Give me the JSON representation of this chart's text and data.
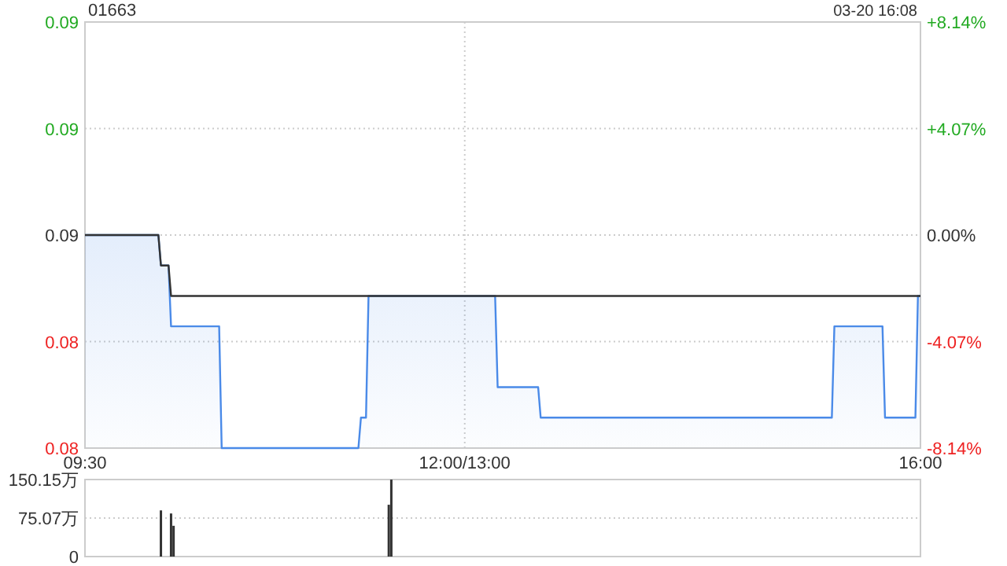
{
  "chart_data": [
    {
      "type": "area",
      "title": "01663",
      "annotations": [
        "03-20 16:08"
      ],
      "categories": [
        "09:30",
        null,
        null,
        null,
        null,
        null,
        null,
        null,
        null,
        null,
        null,
        null,
        null,
        null,
        null,
        null,
        null,
        null,
        null,
        null,
        null,
        null,
        null,
        null,
        null,
        null,
        null,
        null,
        null,
        null,
        null,
        null,
        null,
        null,
        null,
        null,
        null,
        null,
        null,
        null,
        null,
        null,
        null,
        null,
        null,
        null,
        null,
        null,
        null,
        null,
        null,
        null,
        null,
        null,
        null,
        null,
        null,
        null,
        null,
        null,
        null,
        null,
        null,
        null,
        null,
        null,
        null,
        null,
        null,
        null,
        null,
        null,
        null,
        null,
        null,
        null,
        null,
        null,
        null,
        null,
        null,
        null,
        null,
        null,
        null,
        null,
        null,
        null,
        null,
        null,
        null,
        null,
        null,
        null,
        null,
        null,
        null,
        null,
        null,
        null,
        null,
        null,
        null,
        null,
        null,
        null,
        null,
        null,
        null,
        null,
        null,
        null,
        null,
        null,
        null,
        null,
        null,
        null,
        null,
        null,
        null,
        null,
        null,
        null,
        null,
        null,
        null,
        null,
        null,
        null,
        null,
        null,
        null,
        null,
        null,
        null,
        null,
        null,
        null,
        null,
        null,
        null,
        null,
        null,
        null,
        null,
        null,
        null,
        null,
        null,
        "12:00/13:00",
        null,
        null,
        null,
        null,
        null,
        null,
        null,
        null,
        null,
        null,
        null,
        null,
        null,
        null,
        null,
        null,
        null,
        null,
        null,
        null,
        null,
        null,
        null,
        null,
        null,
        null,
        null,
        null,
        null,
        null,
        null,
        null,
        null,
        null,
        null,
        null,
        null,
        null,
        null,
        null,
        null,
        null,
        null,
        null,
        null,
        null,
        null,
        null,
        null,
        null,
        null,
        null,
        null,
        null,
        null,
        null,
        null,
        null,
        null,
        null,
        null,
        null,
        null,
        null,
        null,
        null,
        null,
        null,
        null,
        null,
        null,
        null,
        null,
        null,
        null,
        null,
        null,
        null,
        null,
        null,
        null,
        null,
        null,
        null,
        null,
        null,
        null,
        null,
        null,
        null,
        null,
        null,
        null,
        null,
        null,
        null,
        null,
        null,
        null,
        null,
        null,
        null,
        null,
        null,
        null,
        null,
        null,
        null,
        null,
        null,
        null,
        null,
        null,
        null,
        null,
        null,
        null,
        null,
        null,
        null,
        null,
        null,
        null,
        null,
        null,
        null,
        null,
        null,
        null,
        null,
        null,
        null,
        null,
        null,
        null,
        null,
        null,
        null,
        null,
        null,
        null,
        null,
        null,
        null,
        null,
        null,
        null,
        null,
        null,
        null,
        null,
        null,
        null,
        null,
        null,
        null,
        null,
        null,
        null,
        null,
        null,
        null,
        null,
        null,
        null,
        null,
        null,
        null,
        null,
        null,
        null,
        null,
        null,
        null,
        null,
        null,
        null,
        null,
        null,
        "16:00"
      ],
      "ylim": [
        0.079,
        0.093
      ],
      "yticks": [
        {
          "value": 0.093,
          "label": "0.09"
        },
        {
          "value": 0.0895,
          "label": "0.09"
        },
        {
          "value": 0.086,
          "label": "0.09"
        },
        {
          "value": 0.0825,
          "label": "0.08"
        },
        {
          "value": 0.079,
          "label": "0.08"
        }
      ],
      "y2lim": [
        -8.14,
        8.14
      ],
      "y2ticks": [
        {
          "value": 8.14,
          "label": "+8.14%"
        },
        {
          "value": 4.07,
          "label": "+4.07%"
        },
        {
          "value": 0,
          "label": "0.00%"
        },
        {
          "value": -4.07,
          "label": "-4.07%"
        },
        {
          "value": -8.14,
          "label": "-8.14%"
        }
      ],
      "grid": true,
      "series": [
        {
          "color": "#4a8ae8",
          "values": [
            0.086,
            0.086,
            0.086,
            0.086,
            0.086,
            0.086,
            0.086,
            0.086,
            0.086,
            0.086,
            0.086,
            0.086,
            0.086,
            0.086,
            0.086,
            0.086,
            0.086,
            0.086,
            0.086,
            0.086,
            0.086,
            0.086,
            0.086,
            0.086,
            0.086,
            0.086,
            0.086,
            0.086,
            0.086,
            0.086,
            0.085,
            0.085,
            0.085,
            0.085,
            0.083,
            0.083,
            0.083,
            0.083,
            0.083,
            0.083,
            0.083,
            0.083,
            0.083,
            0.083,
            0.083,
            0.083,
            0.083,
            0.083,
            0.083,
            0.083,
            0.083,
            0.083,
            0.083,
            0.083,
            0.079,
            0.079,
            0.079,
            0.079,
            0.079,
            0.079,
            0.079,
            0.079,
            0.079,
            0.079,
            0.079,
            0.079,
            0.079,
            0.079,
            0.079,
            0.079,
            0.079,
            0.079,
            0.079,
            0.079,
            0.079,
            0.079,
            0.079,
            0.079,
            0.079,
            0.079,
            0.079,
            0.079,
            0.079,
            0.079,
            0.079,
            0.079,
            0.079,
            0.079,
            0.079,
            0.079,
            0.079,
            0.079,
            0.079,
            0.079,
            0.079,
            0.079,
            0.079,
            0.079,
            0.079,
            0.079,
            0.079,
            0.079,
            0.079,
            0.079,
            0.079,
            0.079,
            0.079,
            0.079,
            0.079,
            0.08,
            0.08,
            0.08,
            0.084,
            0.084,
            0.084,
            0.084,
            0.084,
            0.084,
            0.084,
            0.084,
            0.084,
            0.084,
            0.084,
            0.084,
            0.084,
            0.084,
            0.084,
            0.084,
            0.084,
            0.084,
            0.084,
            0.084,
            0.084,
            0.084,
            0.084,
            0.084,
            0.084,
            0.084,
            0.084,
            0.084,
            0.084,
            0.084,
            0.084,
            0.084,
            0.084,
            0.084,
            0.084,
            0.084,
            0.084,
            0.084,
            0.084,
            0.084,
            0.084,
            0.084,
            0.084,
            0.084,
            0.084,
            0.084,
            0.084,
            0.084,
            0.084,
            0.084,
            0.084,
            0.081,
            0.081,
            0.081,
            0.081,
            0.081,
            0.081,
            0.081,
            0.081,
            0.081,
            0.081,
            0.081,
            0.081,
            0.081,
            0.081,
            0.081,
            0.081,
            0.081,
            0.08,
            0.08,
            0.08,
            0.08,
            0.08,
            0.08,
            0.08,
            0.08,
            0.08,
            0.08,
            0.08,
            0.08,
            0.08,
            0.08,
            0.08,
            0.08,
            0.08,
            0.08,
            0.08,
            0.08,
            0.08,
            0.08,
            0.08,
            0.08,
            0.08,
            0.08,
            0.08,
            0.08,
            0.08,
            0.08,
            0.08,
            0.08,
            0.08,
            0.08,
            0.08,
            0.08,
            0.08,
            0.08,
            0.08,
            0.08,
            0.08,
            0.08,
            0.08,
            0.08,
            0.08,
            0.08,
            0.08,
            0.08,
            0.08,
            0.08,
            0.08,
            0.08,
            0.08,
            0.08,
            0.08,
            0.08,
            0.08,
            0.08,
            0.08,
            0.08,
            0.08,
            0.08,
            0.08,
            0.08,
            0.08,
            0.08,
            0.08,
            0.08,
            0.08,
            0.08,
            0.08,
            0.08,
            0.08,
            0.08,
            0.08,
            0.08,
            0.08,
            0.08,
            0.08,
            0.08,
            0.08,
            0.08,
            0.08,
            0.08,
            0.08,
            0.08,
            0.08,
            0.08,
            0.08,
            0.08,
            0.08,
            0.08,
            0.08,
            0.08,
            0.08,
            0.08,
            0.08,
            0.08,
            0.08,
            0.08,
            0.08,
            0.08,
            0.08,
            0.08,
            0.08,
            0.08,
            0.08,
            0.08,
            0.08,
            0.08,
            0.08,
            0.08,
            0.08,
            0.08,
            0.08,
            0.08,
            0.083,
            0.083,
            0.083,
            0.083,
            0.083,
            0.083,
            0.083,
            0.083,
            0.083,
            0.083,
            0.083,
            0.083,
            0.083,
            0.083,
            0.083,
            0.083,
            0.083,
            0.083,
            0.083,
            0.083,
            0.08,
            0.08,
            0.08,
            0.08,
            0.08,
            0.08,
            0.08,
            0.08,
            0.08,
            0.08,
            0.08,
            0.08,
            0.08,
            0.084,
            0.084
          ]
        },
        {
          "type": "line",
          "color": "#333333",
          "values": [
            0.086,
            0.086,
            0.086,
            0.086,
            0.086,
            0.086,
            0.086,
            0.086,
            0.086,
            0.086,
            0.086,
            0.086,
            0.086,
            0.086,
            0.086,
            0.086,
            0.086,
            0.086,
            0.086,
            0.086,
            0.086,
            0.086,
            0.086,
            0.086,
            0.086,
            0.086,
            0.086,
            0.086,
            0.086,
            0.086,
            0.085,
            0.085,
            0.085,
            0.085,
            0.084,
            0.084,
            0.084,
            0.084,
            0.084,
            0.084,
            0.084,
            0.084,
            0.084,
            0.084,
            0.084,
            0.084,
            0.084,
            0.084,
            0.084,
            0.084,
            0.084,
            0.084,
            0.084,
            0.084,
            0.084,
            0.084,
            0.084,
            0.084,
            0.084,
            0.084,
            0.084,
            0.084,
            0.084,
            0.084,
            0.084,
            0.084,
            0.084,
            0.084,
            0.084,
            0.084,
            0.084,
            0.084,
            0.084,
            0.084,
            0.084,
            0.084,
            0.084,
            0.084,
            0.084,
            0.084,
            0.084,
            0.084,
            0.084,
            0.084,
            0.084,
            0.084,
            0.084,
            0.084,
            0.084,
            0.084,
            0.084,
            0.084,
            0.084,
            0.084,
            0.084,
            0.084,
            0.084,
            0.084,
            0.084,
            0.084,
            0.084,
            0.084,
            0.084,
            0.084,
            0.084,
            0.084,
            0.084,
            0.084,
            0.084,
            0.084,
            0.084,
            0.084,
            0.084,
            0.084,
            0.084,
            0.084,
            0.084,
            0.084,
            0.084,
            0.084,
            0.084,
            0.084,
            0.084,
            0.084,
            0.084,
            0.084,
            0.084,
            0.084,
            0.084,
            0.084,
            0.084,
            0.084,
            0.084,
            0.084,
            0.084,
            0.084,
            0.084,
            0.084,
            0.084,
            0.084,
            0.084,
            0.084,
            0.084,
            0.084,
            0.084,
            0.084,
            0.084,
            0.084,
            0.084,
            0.084,
            0.084,
            0.084,
            0.084,
            0.084,
            0.084,
            0.084,
            0.084,
            0.084,
            0.084,
            0.084,
            0.084,
            0.084,
            0.084,
            0.084,
            0.084,
            0.084,
            0.084,
            0.084,
            0.084,
            0.084,
            0.084,
            0.084,
            0.084,
            0.084,
            0.084,
            0.084,
            0.084,
            0.084,
            0.084,
            0.084,
            0.084,
            0.084,
            0.084,
            0.084,
            0.084,
            0.084,
            0.084,
            0.084,
            0.084,
            0.084,
            0.084,
            0.084,
            0.084,
            0.084,
            0.084,
            0.084,
            0.084,
            0.084,
            0.084,
            0.084,
            0.084,
            0.084,
            0.084,
            0.084,
            0.084,
            0.084,
            0.084,
            0.084,
            0.084,
            0.084,
            0.084,
            0.084,
            0.084,
            0.084,
            0.084,
            0.084,
            0.084,
            0.084,
            0.084,
            0.084,
            0.084,
            0.084,
            0.084,
            0.084,
            0.084,
            0.084,
            0.084,
            0.084,
            0.084,
            0.084,
            0.084,
            0.084,
            0.084,
            0.084,
            0.084,
            0.084,
            0.084,
            0.084,
            0.084,
            0.084,
            0.084,
            0.084,
            0.084,
            0.084,
            0.084,
            0.084,
            0.084,
            0.084,
            0.084,
            0.084,
            0.084,
            0.084,
            0.084,
            0.084,
            0.084,
            0.084,
            0.084,
            0.084,
            0.084,
            0.084,
            0.084,
            0.084,
            0.084,
            0.084,
            0.084,
            0.084,
            0.084,
            0.084,
            0.084,
            0.084,
            0.084,
            0.084,
            0.084,
            0.084,
            0.084,
            0.084,
            0.084,
            0.084,
            0.084,
            0.084,
            0.084,
            0.084,
            0.084,
            0.084,
            0.084,
            0.084,
            0.084,
            0.084,
            0.084,
            0.084,
            0.084,
            0.084,
            0.084,
            0.084,
            0.084,
            0.084,
            0.084,
            0.084,
            0.084,
            0.084,
            0.084,
            0.084,
            0.084,
            0.084,
            0.084,
            0.084,
            0.084,
            0.084,
            0.084,
            0.084,
            0.084,
            0.084,
            0.084,
            0.084,
            0.084,
            0.084,
            0.084,
            0.084,
            0.084,
            0.084,
            0.084,
            0.084,
            0.084,
            0.084,
            0.084,
            0.084,
            0.084,
            0.084,
            0.084,
            0.084,
            0.084
          ]
        }
      ]
    },
    {
      "type": "bar",
      "categories": [
        null,
        null,
        null,
        null,
        null,
        null,
        null,
        null,
        null,
        null,
        null,
        null,
        null,
        null,
        null,
        null,
        null,
        null,
        null,
        null,
        null,
        null,
        null,
        null,
        null,
        null,
        null,
        null,
        null,
        null,
        null,
        null,
        null,
        null,
        null,
        null,
        null,
        null,
        null,
        null,
        null,
        null,
        null,
        null,
        null,
        null,
        null,
        null,
        null,
        null,
        null,
        null,
        null,
        null,
        null,
        null,
        null,
        null,
        null,
        null,
        null,
        null,
        null,
        null,
        null,
        null,
        null,
        null,
        null,
        null,
        null,
        null,
        null,
        null,
        null,
        null,
        null,
        null,
        null,
        null,
        null,
        null,
        null,
        null,
        null,
        null,
        null,
        null,
        null,
        null,
        null,
        null,
        null,
        null,
        null,
        null,
        null,
        null,
        null,
        null,
        null,
        null,
        null,
        null,
        null,
        null,
        null,
        null,
        null,
        null,
        null,
        null,
        null,
        null,
        null,
        null,
        null,
        null,
        null,
        null,
        null,
        null,
        null,
        null,
        null,
        null,
        null,
        null,
        null,
        null,
        null,
        null,
        null,
        null,
        null,
        null,
        null,
        null,
        null,
        null,
        null,
        null,
        null,
        null,
        null,
        null,
        null,
        null,
        null,
        null,
        null,
        null,
        null,
        null,
        null,
        null,
        null,
        null,
        null,
        null,
        null,
        null,
        null,
        null,
        null,
        null,
        null,
        null,
        null,
        null,
        null,
        null,
        null,
        null,
        null,
        null,
        null,
        null,
        null,
        null,
        null,
        null,
        null,
        null,
        null,
        null,
        null,
        null,
        null,
        null,
        null,
        null,
        null,
        null,
        null,
        null,
        null,
        null,
        null,
        null,
        null,
        null,
        null,
        null,
        null,
        null,
        null,
        null,
        null,
        null,
        null,
        null,
        null,
        null,
        null,
        null,
        null,
        null,
        null,
        null,
        null,
        null,
        null,
        null,
        null,
        null,
        null,
        null,
        null,
        null,
        null,
        null,
        null,
        null,
        null,
        null,
        null,
        null,
        null,
        null,
        null,
        null,
        null,
        null,
        null,
        null,
        null,
        null,
        null,
        null,
        null,
        null,
        null,
        null,
        null,
        null,
        null,
        null,
        null,
        null,
        null,
        null,
        null,
        null,
        null,
        null,
        null,
        null,
        null,
        null,
        null,
        null,
        null,
        null,
        null,
        null,
        null,
        null,
        null,
        null,
        null,
        null,
        null,
        null,
        null,
        null,
        null,
        null,
        null,
        null,
        null,
        null,
        null,
        null,
        null,
        null,
        null,
        null,
        null,
        null,
        null,
        null,
        null,
        null,
        null,
        null,
        null,
        null,
        null,
        null,
        null,
        null,
        null,
        null,
        null,
        null,
        null,
        null,
        null,
        null,
        null,
        null,
        null,
        null,
        null,
        null,
        null,
        null,
        null,
        null,
        null
      ],
      "ylim": [
        0,
        150.15
      ],
      "yticks": [
        {
          "value": 150.15,
          "label": "150.15万"
        },
        {
          "value": 75.07,
          "label": "75.07万"
        },
        0
      ],
      "grid": "y",
      "tick_labels": "y",
      "series": [
        {
          "color": "#333333",
          "values": [
            null,
            null,
            null,
            null,
            null,
            null,
            null,
            null,
            null,
            null,
            null,
            null,
            null,
            null,
            null,
            null,
            null,
            null,
            null,
            null,
            null,
            null,
            null,
            null,
            null,
            null,
            null,
            null,
            null,
            null,
            90,
            null,
            null,
            null,
            84,
            60,
            null,
            null,
            null,
            null,
            null,
            null,
            null,
            null,
            null,
            null,
            null,
            null,
            null,
            null,
            null,
            null,
            null,
            null,
            null,
            null,
            null,
            null,
            null,
            null,
            null,
            null,
            null,
            null,
            null,
            null,
            null,
            null,
            null,
            null,
            null,
            null,
            null,
            null,
            null,
            null,
            null,
            null,
            null,
            null,
            null,
            null,
            null,
            null,
            null,
            null,
            null,
            null,
            null,
            null,
            null,
            null,
            null,
            null,
            null,
            null,
            null,
            null,
            null,
            null,
            null,
            null,
            null,
            null,
            null,
            null,
            null,
            null,
            null,
            null,
            null,
            null,
            null,
            null,
            null,
            null,
            null,
            null,
            null,
            null,
            101,
            150,
            null,
            null,
            null,
            null,
            null,
            null,
            null,
            null,
            null,
            null,
            null,
            null,
            null,
            null,
            null,
            null,
            null,
            null,
            null,
            null,
            null,
            null,
            null,
            null,
            null,
            null,
            null,
            null,
            null,
            null,
            null,
            null,
            null,
            null,
            null,
            null,
            null,
            null,
            null,
            null,
            null,
            null,
            null,
            null,
            null,
            null,
            null,
            null,
            null,
            null,
            null,
            null,
            null,
            null,
            null,
            null,
            null,
            null,
            null,
            null,
            null,
            null,
            null,
            null,
            null,
            null,
            null,
            null,
            null,
            null,
            null,
            null,
            null,
            null,
            null,
            null,
            null,
            null,
            null,
            null,
            null,
            null,
            null,
            null,
            null,
            null,
            null,
            null,
            null,
            null,
            null,
            null,
            null,
            null,
            null,
            null,
            null,
            null,
            null,
            null,
            null,
            null,
            null,
            null,
            null,
            null,
            null,
            null,
            null,
            null,
            null,
            null,
            null,
            null,
            null,
            null,
            null,
            null,
            null,
            null,
            null,
            null,
            null,
            null,
            null,
            null,
            null,
            null,
            null,
            null,
            null,
            null,
            null,
            null,
            null,
            null,
            null,
            null,
            null,
            null,
            null,
            null,
            null,
            null,
            null,
            null,
            null,
            null,
            null,
            null,
            null,
            null,
            null,
            null,
            null,
            null,
            null,
            null,
            null,
            null,
            null,
            null,
            null,
            null,
            null,
            null,
            null,
            null,
            null,
            null,
            null,
            null,
            null,
            null,
            null,
            null,
            null,
            null,
            null,
            null,
            null,
            null,
            null,
            null,
            null,
            null,
            null,
            null,
            null,
            null,
            null,
            null,
            null,
            null,
            null,
            null,
            null,
            null,
            null,
            null,
            null,
            null,
            null,
            null,
            null,
            null,
            null,
            null,
            null
          ]
        }
      ]
    }
  ]
}
